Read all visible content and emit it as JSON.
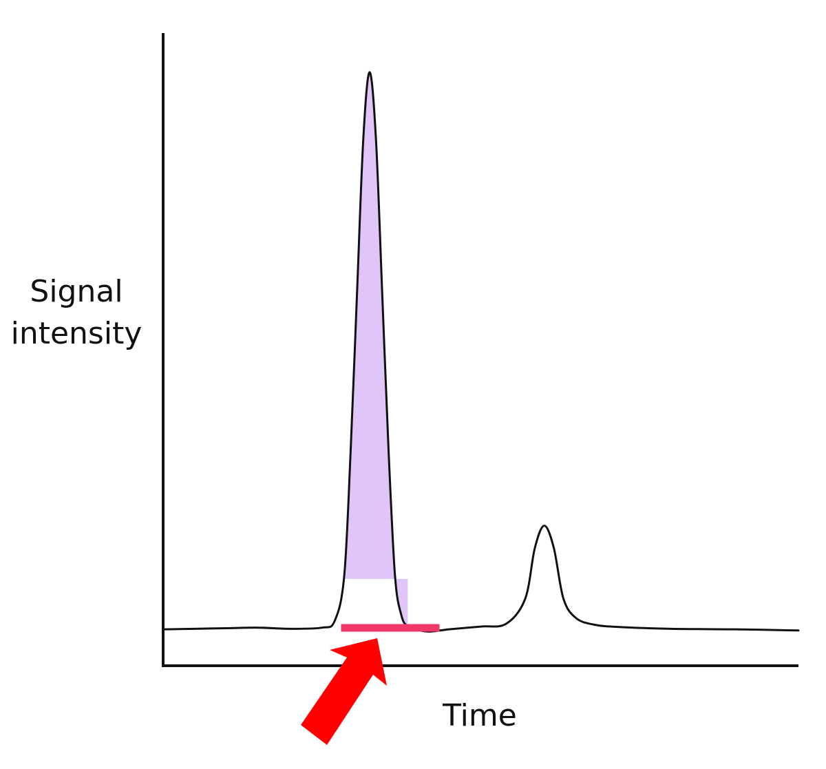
{
  "chart_data": {
    "type": "line",
    "title": "",
    "xlabel": "Time",
    "ylabel": [
      "Signal",
      "intensity"
    ],
    "grid": false,
    "legend": "none",
    "ticks": false,
    "series": [
      {
        "values_note": "",
        "x": [
          0,
          5,
          10,
          15,
          20,
          25,
          27,
          28.5,
          29.5,
          30.5,
          31.5,
          32.5,
          33.5,
          34.5,
          35.5,
          36.5,
          37.5,
          38.5,
          40,
          42,
          45,
          50,
          54,
          57,
          58.5,
          60,
          61.5,
          63,
          65,
          68,
          72,
          80,
          90,
          100
        ],
        "values": [
          0.5,
          0.6,
          0.7,
          0.8,
          0.6,
          0.8,
          2,
          10,
          32,
          60,
          88,
          100,
          88,
          60,
          32,
          10,
          3,
          1,
          0.4,
          0.1,
          0.5,
          1,
          1.5,
          6,
          15,
          19,
          15,
          6,
          2.5,
          1.3,
          0.9,
          0.6,
          0.5,
          0.3
        ],
        "color": "#111111"
      }
    ],
    "xlim": [
      0,
      100
    ],
    "ylim": [
      -6,
      107
    ],
    "shaded_region": {
      "x_start": 28.5,
      "x_end": 38.5,
      "color": "#e0c6f8"
    },
    "baseline_marker": {
      "x_start": 28,
      "x_end": 43.5,
      "color": "#f0386b"
    },
    "arrow": {
      "color": "#ff0000",
      "points_to": "baseline_marker"
    }
  }
}
